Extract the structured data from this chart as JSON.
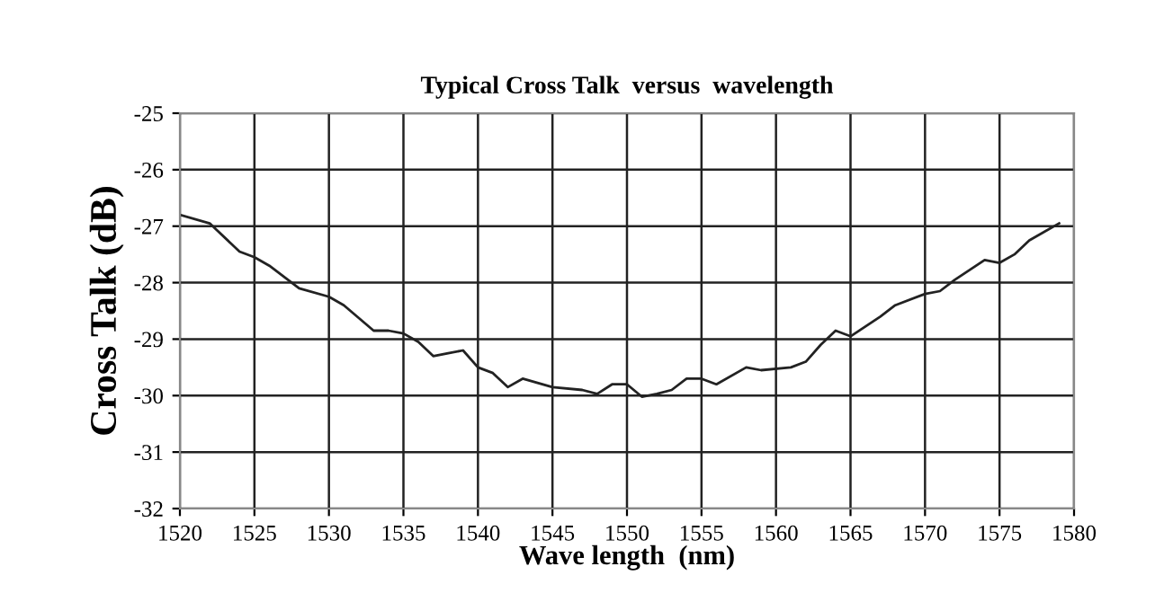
{
  "chart_data": {
    "type": "line",
    "title": "Typical Cross Talk  versus  wavelength",
    "xlabel": "Wave length  (nm)",
    "ylabel": "Cross Talk (dB)",
    "x": [
      1520,
      1522,
      1524,
      1525,
      1526,
      1528,
      1530,
      1531,
      1533,
      1534,
      1535,
      1536,
      1537,
      1538,
      1539,
      1540,
      1541,
      1542,
      1543,
      1545,
      1547,
      1548,
      1549,
      1550,
      1551,
      1552,
      1553,
      1554,
      1555,
      1556,
      1558,
      1559,
      1561,
      1562,
      1563,
      1564,
      1565,
      1567,
      1568,
      1570,
      1571,
      1572,
      1574,
      1575,
      1576,
      1577,
      1579
    ],
    "series": [
      {
        "color": "#222222",
        "values": [
          -26.8,
          -26.95,
          -27.45,
          -27.55,
          -27.7,
          -28.1,
          -28.25,
          -28.4,
          -28.85,
          -28.85,
          -28.9,
          -29.05,
          -29.3,
          -29.25,
          -29.2,
          -29.5,
          -29.6,
          -29.85,
          -29.7,
          -29.85,
          -29.9,
          -29.97,
          -29.8,
          -29.8,
          -30.02,
          -29.97,
          -29.9,
          -29.7,
          -29.7,
          -29.8,
          -29.5,
          -29.55,
          -29.5,
          -29.4,
          -29.1,
          -28.85,
          -28.95,
          -28.6,
          -28.4,
          -28.2,
          -28.15,
          -27.95,
          -27.6,
          -27.65,
          -27.5,
          -27.25,
          -26.95
        ]
      }
    ],
    "xlim": [
      1520,
      1580
    ],
    "xticks": [
      1520,
      1525,
      1530,
      1535,
      1540,
      1545,
      1550,
      1555,
      1560,
      1565,
      1570,
      1575,
      1580
    ],
    "ylim": [
      -32,
      -25
    ],
    "yticks": [
      -32,
      -31,
      -30,
      -29,
      -28,
      -27,
      -26,
      -25
    ],
    "grid": true,
    "marker": "none",
    "line_style": "solid"
  }
}
